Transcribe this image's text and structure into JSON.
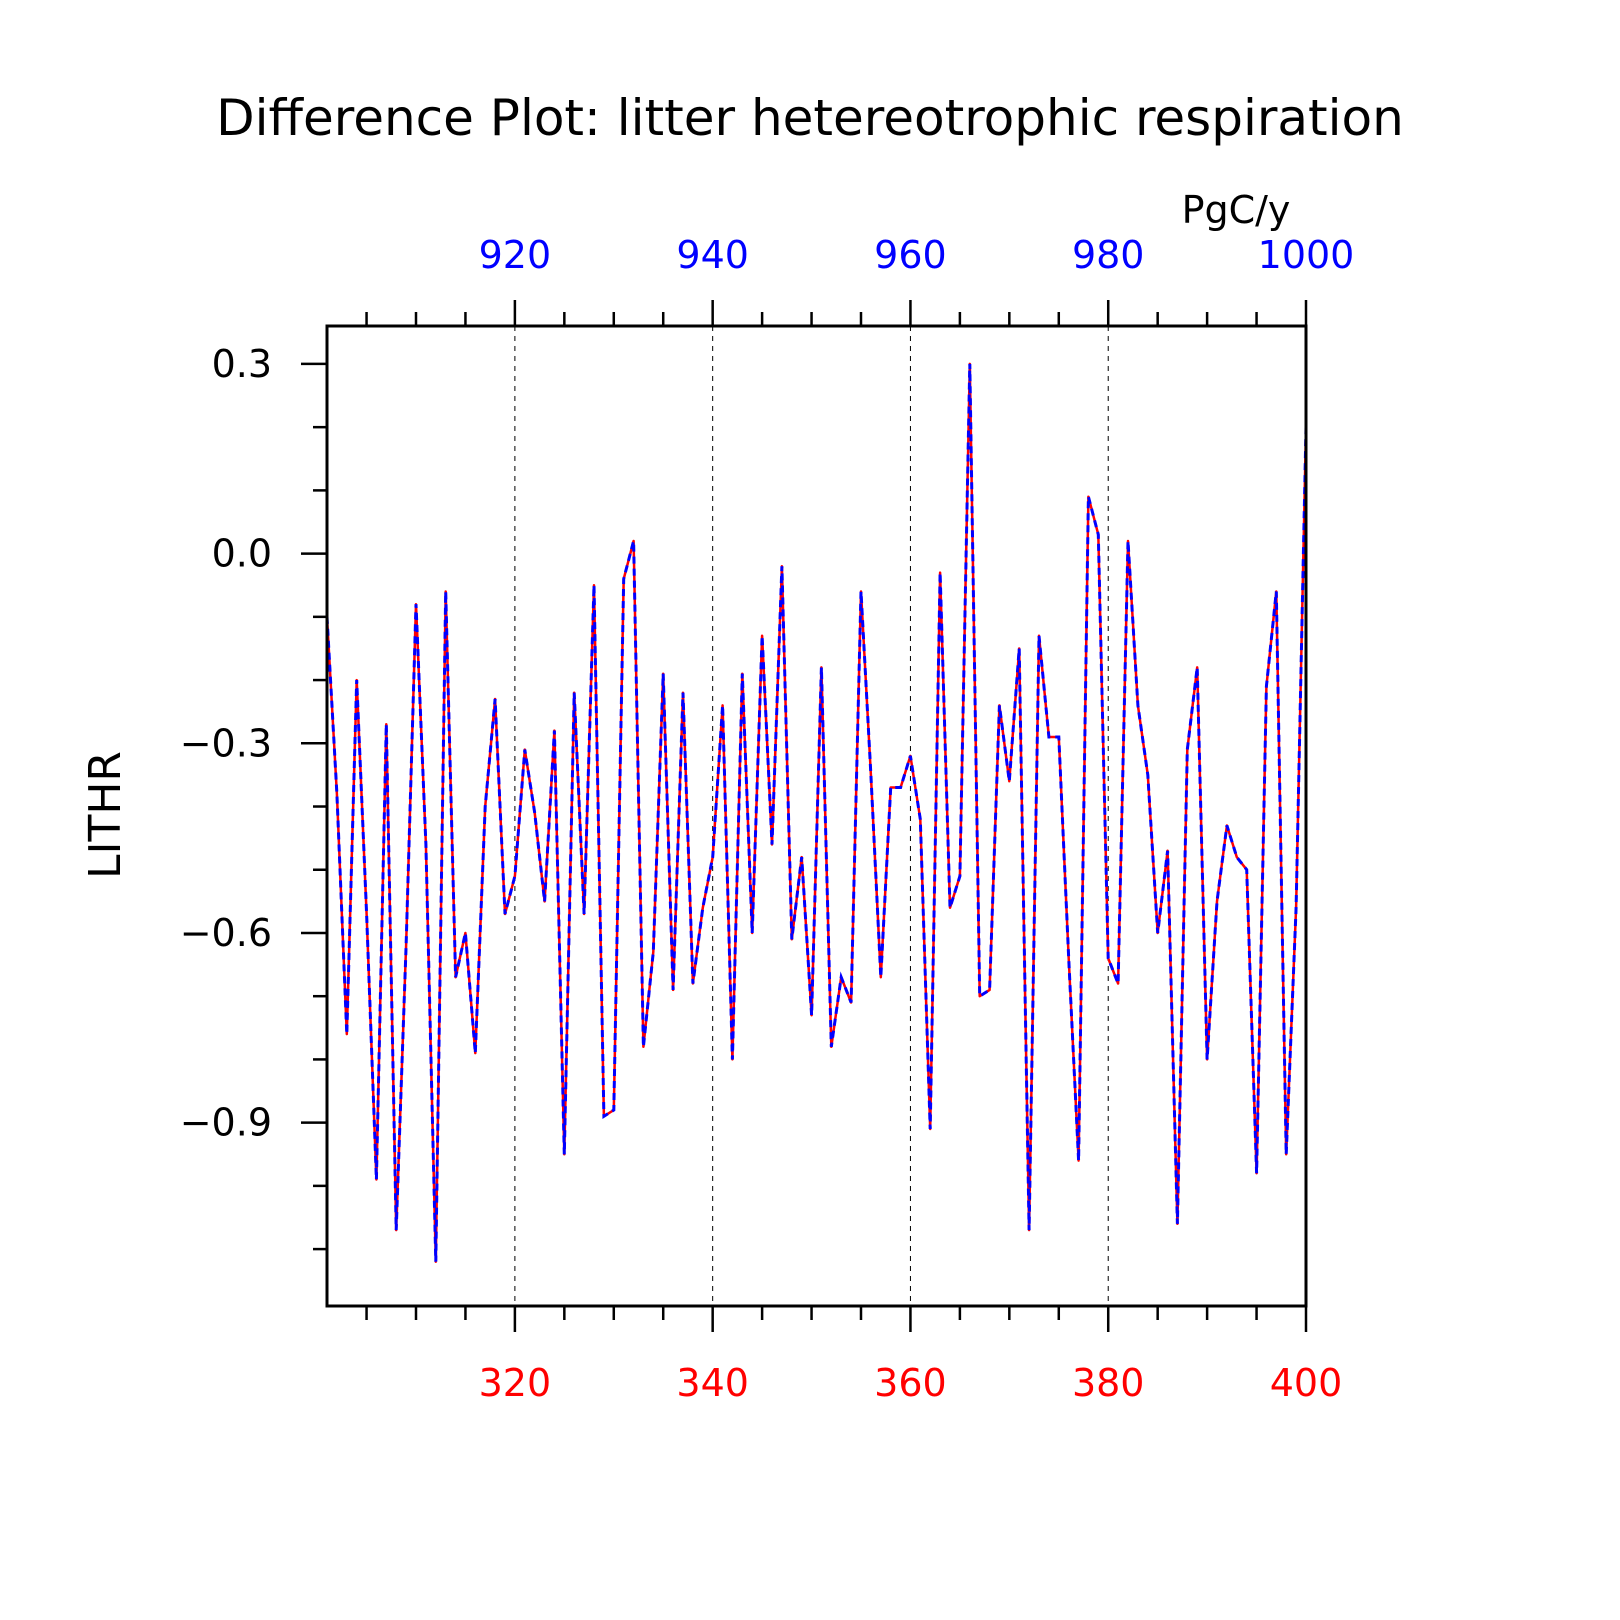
{
  "chart_data": {
    "type": "line",
    "title": "Difference Plot: litter hetereotrophic respiration",
    "units": "PgC/y",
    "ylabel": "LITHR",
    "xlim_bottom": [
      301,
      400
    ],
    "xlim_top": [
      901,
      1000
    ],
    "ylim": [
      -1.19,
      0.36
    ],
    "y_ticks": [
      0.3,
      0.0,
      -0.3,
      -0.6,
      -0.9
    ],
    "y_tick_labels": [
      "0.3",
      "0.0",
      "−0.3",
      "−0.6",
      "−0.9"
    ],
    "x_bottom_ticks": [
      320,
      340,
      360,
      380,
      400
    ],
    "x_bottom_tick_labels": [
      "320",
      "340",
      "360",
      "380",
      "400"
    ],
    "x_top_ticks": [
      920,
      940,
      960,
      980,
      1000
    ],
    "x_top_tick_labels": [
      "920",
      "940",
      "960",
      "980",
      "1000"
    ],
    "grid": "vertical dashed at major x ticks",
    "colors": {
      "bottom_axis": "#ff0000",
      "top_axis": "#0000ff",
      "line_solid": "#ff0000",
      "line_dashed": "#0000ff"
    },
    "x": [
      301,
      302,
      303,
      304,
      305,
      306,
      307,
      308,
      309,
      310,
      311,
      312,
      313,
      314,
      315,
      316,
      317,
      318,
      319,
      320,
      321,
      322,
      323,
      324,
      325,
      326,
      327,
      328,
      329,
      330,
      331,
      332,
      333,
      334,
      335,
      336,
      337,
      338,
      339,
      340,
      341,
      342,
      343,
      344,
      345,
      346,
      347,
      348,
      349,
      350,
      351,
      352,
      353,
      354,
      355,
      356,
      357,
      358,
      359,
      360,
      361,
      362,
      363,
      364,
      365,
      366,
      367,
      368,
      369,
      370,
      371,
      372,
      373,
      374,
      375,
      376,
      377,
      378,
      379,
      380,
      381,
      382,
      383,
      384,
      385,
      386,
      387,
      388,
      389,
      390,
      391,
      392,
      393,
      394,
      395,
      396,
      397,
      398,
      399,
      400
    ],
    "series": [
      {
        "values": [
          -0.1,
          -0.38,
          -0.76,
          -0.2,
          -0.57,
          -0.99,
          -0.27,
          -1.07,
          -0.62,
          -0.08,
          -0.46,
          -1.12,
          -0.06,
          -0.67,
          -0.6,
          -0.79,
          -0.4,
          -0.23,
          -0.57,
          -0.51,
          -0.31,
          -0.41,
          -0.55,
          -0.28,
          -0.95,
          -0.22,
          -0.57,
          -0.05,
          -0.89,
          -0.88,
          -0.04,
          0.02,
          -0.78,
          -0.63,
          -0.19,
          -0.69,
          -0.22,
          -0.68,
          -0.56,
          -0.48,
          -0.24,
          -0.8,
          -0.19,
          -0.6,
          -0.13,
          -0.46,
          -0.02,
          -0.61,
          -0.48,
          -0.73,
          -0.18,
          -0.78,
          -0.67,
          -0.71,
          -0.06,
          -0.35,
          -0.67,
          -0.37,
          -0.37,
          -0.32,
          -0.42,
          -0.91,
          -0.03,
          -0.56,
          -0.51,
          0.3,
          -0.7,
          -0.69,
          -0.24,
          -0.36,
          -0.15,
          -1.07,
          -0.13,
          -0.29,
          -0.29,
          -0.64,
          -0.96,
          0.09,
          0.03,
          -0.64,
          -0.68,
          0.02,
          -0.24,
          -0.35,
          -0.6,
          -0.47,
          -1.06,
          -0.31,
          -0.18,
          -0.8,
          -0.55,
          -0.43,
          -0.48,
          -0.5,
          -0.98,
          -0.21,
          -0.06,
          -0.95,
          -0.56,
          0.2
        ]
      }
    ]
  }
}
